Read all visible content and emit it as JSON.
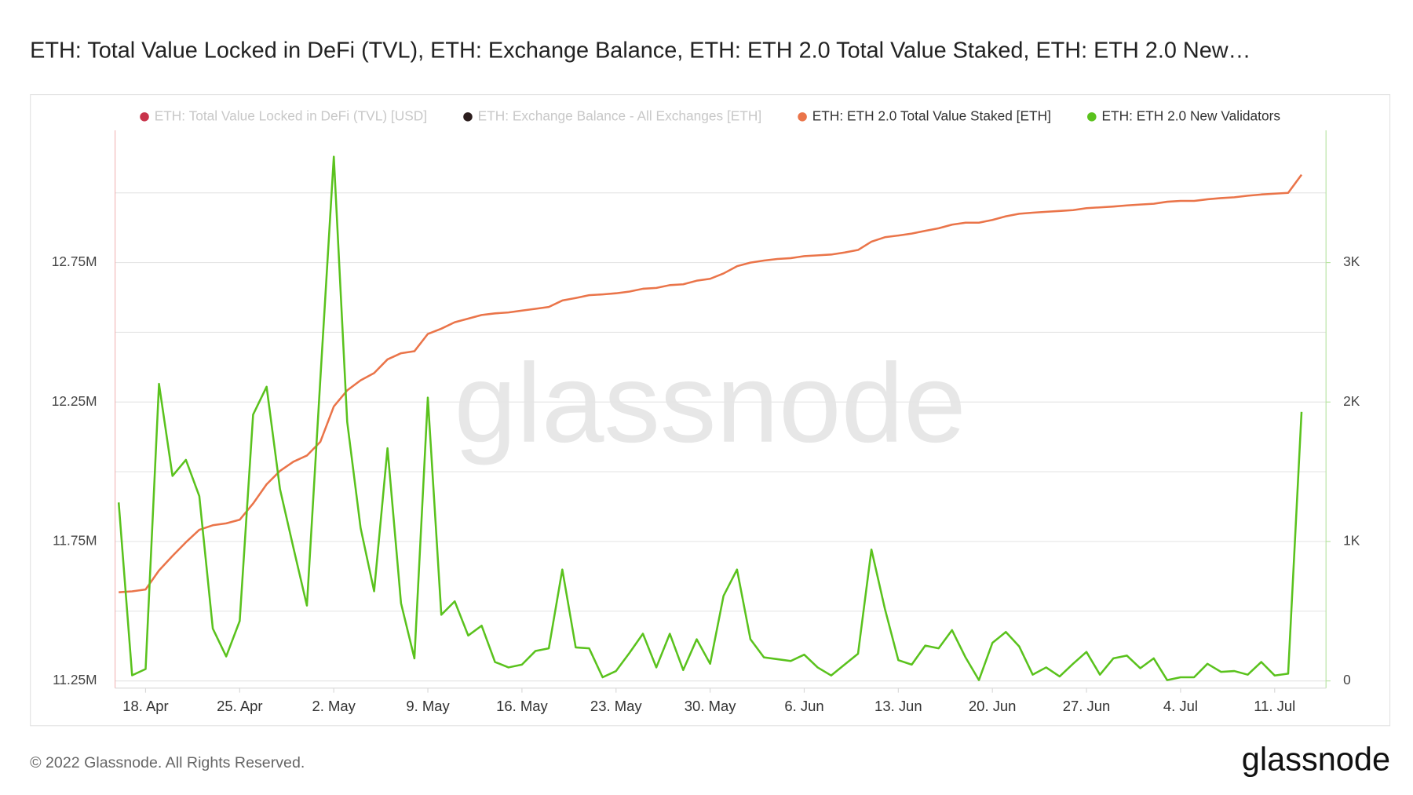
{
  "chart_data": {
    "type": "line",
    "title": "ETH: Total Value Locked in DeFi (TVL), ETH: Exchange Balance, ETH: ETH 2.0 Total Value Staked, ETH: ETH 2.0 New…",
    "x": [
      "16. Apr",
      "17. Apr",
      "18. Apr",
      "19. Apr",
      "20. Apr",
      "21. Apr",
      "22. Apr",
      "23. Apr",
      "24. Apr",
      "25. Apr",
      "26. Apr",
      "27. Apr",
      "28. Apr",
      "29. Apr",
      "30. Apr",
      "1. May",
      "2. May",
      "3. May",
      "4. May",
      "5. May",
      "6. May",
      "7. May",
      "8. May",
      "9. May",
      "10. May",
      "11. May",
      "12. May",
      "13. May",
      "14. May",
      "15. May",
      "16. May",
      "17. May",
      "18. May",
      "19. May",
      "20. May",
      "21. May",
      "22. May",
      "23. May",
      "24. May",
      "25. May",
      "26. May",
      "27. May",
      "28. May",
      "29. May",
      "30. May",
      "31. May",
      "1. Jun",
      "2. Jun",
      "3. Jun",
      "4. Jun",
      "5. Jun",
      "6. Jun",
      "7. Jun",
      "8. Jun",
      "9. Jun",
      "10. Jun",
      "11. Jun",
      "12. Jun",
      "13. Jun",
      "14. Jun",
      "15. Jun",
      "16. Jun",
      "17. Jun",
      "18. Jun",
      "19. Jun",
      "20. Jun",
      "21. Jun",
      "22. Jun",
      "23. Jun",
      "24. Jun",
      "25. Jun",
      "26. Jun",
      "27. Jun",
      "28. Jun",
      "29. Jun",
      "30. Jun",
      "1. Jul",
      "2. Jul",
      "3. Jul",
      "4. Jul",
      "5. Jul",
      "6. Jul",
      "7. Jul",
      "8. Jul",
      "9. Jul",
      "10. Jul",
      "11. Jul",
      "12. Jul",
      "13. Jul"
    ],
    "xticks": [
      "18. Apr",
      "25. Apr",
      "2. May",
      "9. May",
      "16. May",
      "23. May",
      "30. May",
      "6. Jun",
      "13. Jun",
      "20. Jun",
      "27. Jun",
      "4. Jul",
      "11. Jul"
    ],
    "series": [
      {
        "name": "ETH: Total Value Locked in DeFi (TVL) [USD]",
        "color": "#c8334a",
        "visible": false
      },
      {
        "name": "ETH: Exchange Balance - All Exchanges [ETH]",
        "color": "#2b1d1d",
        "visible": false
      },
      {
        "name": "ETH: ETH 2.0 Total Value Staked [ETH]",
        "color": "#ea7449",
        "visible": true,
        "axis": "y",
        "values": [
          11568000,
          11571000,
          11578000,
          11646000,
          11698000,
          11747000,
          11792000,
          11808000,
          11815000,
          11828000,
          11886000,
          11955000,
          12003000,
          12036000,
          12058000,
          12107000,
          12234000,
          12292000,
          12328000,
          12354000,
          12403000,
          12425000,
          12432000,
          12494000,
          12513000,
          12536000,
          12549000,
          12562000,
          12568000,
          12571000,
          12578000,
          12584000,
          12591000,
          12614000,
          12623000,
          12633000,
          12636000,
          12640000,
          12646000,
          12656000,
          12659000,
          12669000,
          12672000,
          12685000,
          12692000,
          12711000,
          12737000,
          12750000,
          12757000,
          12763000,
          12766000,
          12773000,
          12776000,
          12779000,
          12786000,
          12795000,
          12825000,
          12841000,
          12847000,
          12854000,
          12864000,
          12873000,
          12886000,
          12893000,
          12893000,
          12903000,
          12916000,
          12925000,
          12929000,
          12932000,
          12935000,
          12938000,
          12945000,
          12948000,
          12951000,
          12955000,
          12958000,
          12961000,
          12968000,
          12971000,
          12971000,
          12977000,
          12981000,
          12984000,
          12990000,
          12994000,
          12997000,
          13000000,
          13065000
        ]
      },
      {
        "name": "ETH: ETH 2.0 New Validators",
        "color": "#5ac21d",
        "visible": true,
        "axis": "y2",
        "values": [
          1280,
          40,
          85,
          2130,
          1470,
          1585,
          1325,
          375,
          175,
          430,
          1910,
          2110,
          1375,
          955,
          540,
          2160,
          3760,
          1857,
          1097,
          643,
          1669,
          558,
          162,
          2032,
          474,
          571,
          325,
          396,
          136,
          97,
          117,
          214,
          234,
          799,
          240,
          234,
          26,
          71,
          201,
          338,
          97,
          338,
          78,
          299,
          123,
          610,
          799,
          299,
          169,
          156,
          143,
          188,
          97,
          39,
          117,
          195,
          942,
          519,
          149,
          117,
          253,
          234,
          364,
          169,
          6,
          273,
          351,
          247,
          45,
          97,
          32,
          123,
          208,
          45,
          162,
          182,
          91,
          162,
          6,
          26,
          26,
          123,
          65,
          71,
          45,
          136,
          39,
          52,
          1929
        ]
      }
    ],
    "ylim": [
      11250000,
      13224000
    ],
    "yticks": [
      {
        "value": 11250000,
        "label": "11.25M"
      },
      {
        "value": 11750000,
        "label": "11.75M"
      },
      {
        "value": 12250000,
        "label": "12.25M"
      },
      {
        "value": 12750000,
        "label": "12.75M"
      }
    ],
    "yminor": [
      11500000,
      12000000,
      12500000,
      13000000
    ],
    "y2lim": [
      0,
      3948
    ],
    "y2ticks": [
      0,
      {
        "value": 1000,
        "label": "1K"
      },
      {
        "value": 2000,
        "label": "2K"
      },
      {
        "value": 3000,
        "label": "3K"
      }
    ],
    "grid": true,
    "legend": "top"
  },
  "copyright": "© 2022 Glassnode. All Rights Reserved.",
  "brand": "glassnode"
}
